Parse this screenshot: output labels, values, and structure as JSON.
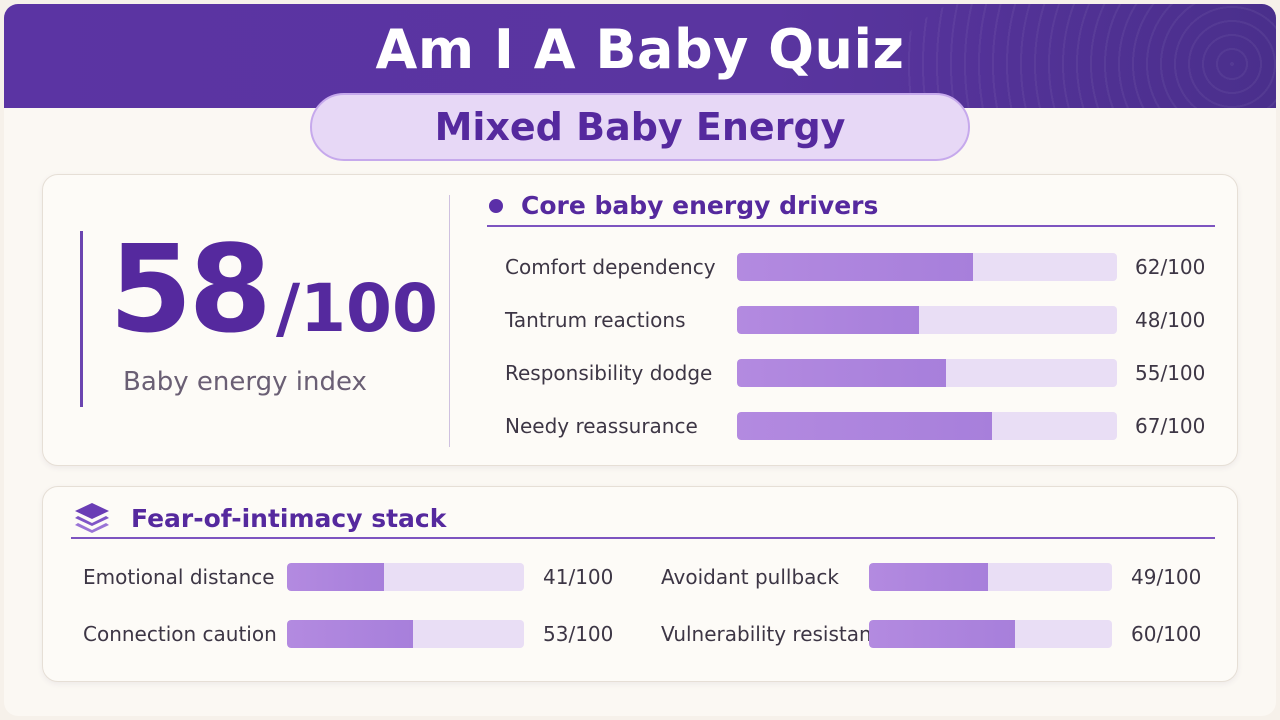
{
  "header": {
    "title": "Am I A Baby Quiz"
  },
  "result": {
    "label": "Mixed Baby Energy"
  },
  "score": {
    "value": "58",
    "denominator": "/100",
    "label": "Baby energy index"
  },
  "core": {
    "title": "Core baby energy drivers",
    "items": [
      {
        "label": "Comfort dependency",
        "value": 62,
        "display": "62/100"
      },
      {
        "label": "Tantrum reactions",
        "value": 48,
        "display": "48/100"
      },
      {
        "label": "Responsibility dodge",
        "value": 55,
        "display": "55/100"
      },
      {
        "label": "Needy reassurance",
        "value": 67,
        "display": "67/100"
      }
    ]
  },
  "intimacy": {
    "title": "Fear-of-intimacy stack",
    "icon": "layers-icon",
    "items": [
      {
        "label": "Emotional distance",
        "value": 41,
        "display": "41/100"
      },
      {
        "label": "Avoidant pullback",
        "value": 49,
        "display": "49/100"
      },
      {
        "label": "Connection caution",
        "value": 53,
        "display": "53/100"
      },
      {
        "label": "Vulnerability resistance",
        "value": 60,
        "display": "60/100"
      }
    ]
  },
  "colors": {
    "accent": "#55299e",
    "header": "#5b34a3",
    "bar_fill": "#b38ae0",
    "bar_track": "#e9def5"
  }
}
